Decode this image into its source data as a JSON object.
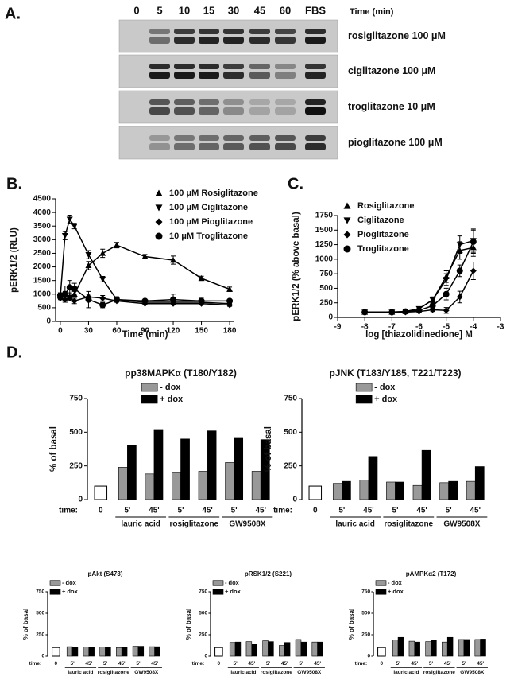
{
  "blot": {
    "label": "A.",
    "time_label": "Time (min)",
    "lanes": [
      "0",
      "5",
      "10",
      "15",
      "30",
      "45",
      "60",
      "FBS"
    ],
    "rows": [
      "rosiglitazone 100 μM",
      "ciglitazone 100 μM",
      "troglitazone 10 μM",
      "pioglitazone 100 μM"
    ]
  },
  "chart_data": [
    {
      "type": "line",
      "panel_label": "B.",
      "xlabel": "Time (min)",
      "ylabel": "pERK1/2 (RLU)",
      "x": [
        0,
        5,
        10,
        15,
        30,
        45,
        60,
        90,
        120,
        150,
        180
      ],
      "xlim": [
        -5,
        185
      ],
      "xticks": [
        0,
        30,
        60,
        90,
        120,
        150,
        180
      ],
      "ylim": [
        0,
        4500
      ],
      "yticks": [
        0,
        500,
        1000,
        1500,
        2000,
        2500,
        3000,
        3500,
        4000,
        4500
      ],
      "legend": "upper right",
      "series": [
        {
          "name": "100 μM Rosiglitazone",
          "color": "#000000",
          "marker": "triangle-up",
          "values": [
            950,
            1000,
            900,
            1000,
            2050,
            2500,
            2800,
            2380,
            2250,
            1580,
            1180
          ],
          "errors": [
            100,
            100,
            150,
            100,
            150,
            150,
            100,
            80,
            150,
            80,
            80
          ]
        },
        {
          "name": "100 μM Ciglitazone",
          "color": "#000000",
          "marker": "triangle-down",
          "values": [
            900,
            3150,
            3750,
            3500,
            2450,
            1550,
            800,
            700,
            700,
            700,
            650
          ],
          "errors": [
            100,
            150,
            150,
            100,
            150,
            100,
            100,
            50,
            50,
            50,
            50
          ]
        },
        {
          "name": "100 μM Pioglitazone",
          "color": "#000000",
          "marker": "diamond",
          "values": [
            850,
            800,
            850,
            750,
            900,
            850,
            750,
            650,
            650,
            650,
            600
          ],
          "errors": [
            100,
            100,
            100,
            100,
            100,
            100,
            50,
            50,
            50,
            50,
            50
          ]
        },
        {
          "name": "10 μM Troglitazone",
          "color": "#000000",
          "marker": "circle",
          "values": [
            950,
            1000,
            1250,
            1200,
            800,
            600,
            800,
            750,
            800,
            750,
            750
          ],
          "errors": [
            100,
            300,
            250,
            200,
            300,
            100,
            100,
            50,
            200,
            100,
            50
          ]
        }
      ]
    },
    {
      "type": "line",
      "panel_label": "C.",
      "xlabel": "log [thiazolidinedione] M",
      "ylabel": "pERK1/2 (% above basal)",
      "x": [
        -8,
        -7,
        -6.5,
        -6,
        -5.5,
        -5,
        -4.5,
        -4
      ],
      "xlim": [
        -9,
        -3
      ],
      "xticks": [
        -9,
        -8,
        -7,
        -6,
        -5,
        -4,
        -3
      ],
      "ylim": [
        0,
        1750
      ],
      "yticks": [
        0,
        250,
        500,
        750,
        1000,
        1250,
        1500,
        1750
      ],
      "legend": "upper left",
      "series": [
        {
          "name": "Rosiglitazone",
          "color": "#000000",
          "marker": "triangle-up",
          "values": [
            90,
            90,
            100,
            150,
            300,
            700,
            1150,
            1200
          ],
          "errors": [
            20,
            20,
            20,
            30,
            50,
            100,
            150,
            150
          ]
        },
        {
          "name": "Ciglitazone",
          "color": "#000000",
          "marker": "triangle-down",
          "values": [
            90,
            90,
            100,
            150,
            300,
            650,
            1250,
            1320
          ],
          "errors": [
            20,
            20,
            20,
            30,
            50,
            100,
            150,
            200
          ]
        },
        {
          "name": "Pioglitazone",
          "color": "#000000",
          "marker": "diamond",
          "values": [
            90,
            80,
            90,
            100,
            130,
            120,
            350,
            800
          ],
          "errors": [
            20,
            20,
            20,
            20,
            30,
            50,
            100,
            150
          ]
        },
        {
          "name": "Troglitazone",
          "color": "#000000",
          "marker": "circle",
          "values": [
            90,
            90,
            100,
            120,
            200,
            400,
            800,
            1300
          ],
          "errors": [
            20,
            20,
            20,
            30,
            50,
            100,
            100,
            200
          ]
        }
      ]
    },
    {
      "type": "bar",
      "panel_label": "D.",
      "title": "pp38MAPKα (T180/Y182)",
      "ylabel": "% of basal",
      "time_label": "time:",
      "categories": [
        "0",
        "5'",
        "45'",
        "5'",
        "45'",
        "5'",
        "45'"
      ],
      "group_labels": [
        "lauric acid",
        "rosiglitazone",
        "GW9508X"
      ],
      "control_value": 100,
      "control_color": "#ffffff",
      "legend": "upper center",
      "ylim": [
        0,
        750
      ],
      "yticks": [
        0,
        250,
        500,
        750
      ],
      "series": [
        {
          "name": "- dox",
          "color": "#999999",
          "values": [
            null,
            240,
            190,
            200,
            210,
            275,
            210
          ]
        },
        {
          "name": "+ dox",
          "color": "#000000",
          "values": [
            null,
            400,
            520,
            450,
            510,
            455,
            445
          ]
        }
      ]
    },
    {
      "type": "bar",
      "title": "pJNK (T183/Y185, T221/T223)",
      "ylabel": "% of basal",
      "time_label": "time:",
      "categories": [
        "0",
        "5'",
        "45'",
        "5'",
        "45'",
        "5'",
        "45'"
      ],
      "group_labels": [
        "lauric acid",
        "rosiglitazone",
        "GW9508X"
      ],
      "control_value": 100,
      "control_color": "#ffffff",
      "legend": "upper center",
      "ylim": [
        0,
        750
      ],
      "yticks": [
        0,
        250,
        500,
        750
      ],
      "series": [
        {
          "name": "- dox",
          "color": "#999999",
          "values": [
            null,
            120,
            145,
            130,
            105,
            125,
            135
          ]
        },
        {
          "name": "+ dox",
          "color": "#000000",
          "values": [
            null,
            135,
            320,
            130,
            365,
            135,
            245
          ]
        }
      ]
    },
    {
      "type": "bar",
      "title": "pAkt (S473)",
      "ylabel": "% of basal",
      "time_label": "time:",
      "categories": [
        "0",
        "5'",
        "45'",
        "5'",
        "45'",
        "5'",
        "45'"
      ],
      "group_labels": [
        "lauric acid",
        "rosiglitazone",
        "GW9508X"
      ],
      "control_value": 100,
      "control_color": "#ffffff",
      "legend": "upper left",
      "ylim": [
        0,
        750
      ],
      "yticks": [
        0,
        250,
        500,
        750
      ],
      "series": [
        {
          "name": "- dox",
          "color": "#999999",
          "values": [
            null,
            110,
            105,
            105,
            100,
            115,
            110
          ]
        },
        {
          "name": "+ dox",
          "color": "#000000",
          "values": [
            null,
            105,
            100,
            100,
            105,
            115,
            110
          ]
        }
      ]
    },
    {
      "type": "bar",
      "title": "pRSK1/2 (S221)",
      "ylabel": "% of basal",
      "time_label": "time:",
      "categories": [
        "0",
        "5'",
        "45'",
        "5'",
        "45'",
        "5'",
        "45'"
      ],
      "group_labels": [
        "lauric acid",
        "rosiglitazone",
        "GW9508X"
      ],
      "control_value": 100,
      "control_color": "#ffffff",
      "legend": "upper left",
      "ylim": [
        0,
        750
      ],
      "yticks": [
        0,
        250,
        500,
        750
      ],
      "series": [
        {
          "name": "- dox",
          "color": "#999999",
          "values": [
            null,
            160,
            170,
            180,
            125,
            195,
            165
          ]
        },
        {
          "name": "+ dox",
          "color": "#000000",
          "values": [
            null,
            165,
            145,
            170,
            160,
            165,
            165
          ]
        }
      ]
    },
    {
      "type": "bar",
      "title": "pAMPKα2 (T172)",
      "ylabel": "% of basal",
      "time_label": "time:",
      "categories": [
        "0",
        "5'",
        "45'",
        "5'",
        "45'",
        "5'",
        "45'"
      ],
      "group_labels": [
        "lauric acid",
        "rosiglitazone",
        "GW9508X"
      ],
      "control_value": 100,
      "control_color": "#ffffff",
      "legend": "upper left",
      "ylim": [
        0,
        750
      ],
      "yticks": [
        0,
        250,
        500,
        750
      ],
      "series": [
        {
          "name": "- dox",
          "color": "#999999",
          "values": [
            null,
            190,
            175,
            170,
            165,
            195,
            195
          ]
        },
        {
          "name": "+ dox",
          "color": "#000000",
          "values": [
            null,
            220,
            165,
            190,
            220,
            195,
            200
          ]
        }
      ]
    }
  ]
}
